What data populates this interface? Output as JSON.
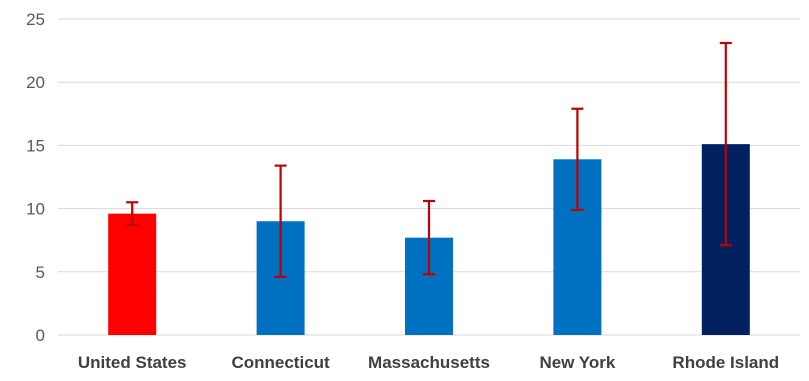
{
  "chart_data": {
    "type": "bar",
    "title": "",
    "xlabel": "",
    "ylabel": "",
    "categories": [
      "United States",
      "Connecticut",
      "Massachusetts",
      "New York",
      "Rhode Island"
    ],
    "values": [
      9.6,
      9.0,
      7.7,
      13.9,
      15.1
    ],
    "error_low": [
      8.7,
      4.6,
      4.8,
      9.9,
      7.1
    ],
    "error_high": [
      10.5,
      13.4,
      10.6,
      17.9,
      23.1
    ],
    "bar_colors": [
      "#ff0000",
      "#0070c0",
      "#0070c0",
      "#0070c0",
      "#002060"
    ],
    "error_color": "#c00000",
    "ylim": [
      0,
      25
    ],
    "yticks": [
      0,
      5,
      10,
      15,
      20,
      25
    ],
    "grid": true,
    "legend": "none"
  }
}
